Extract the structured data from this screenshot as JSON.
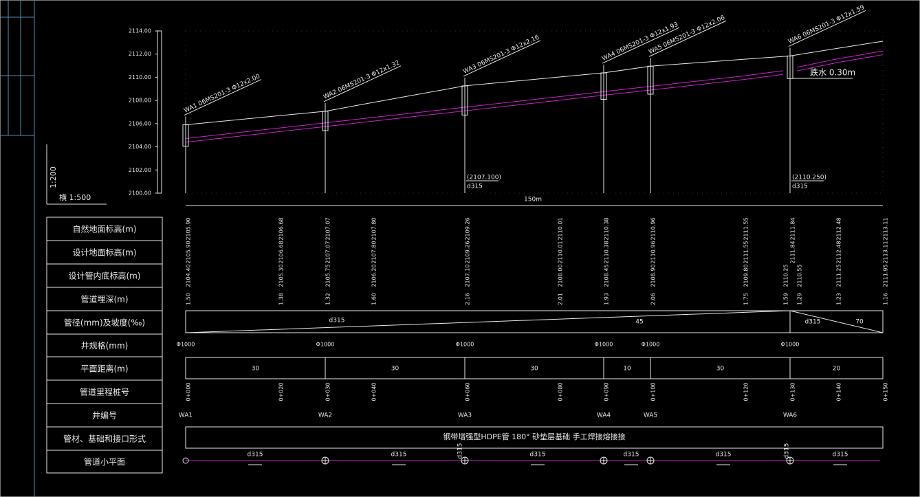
{
  "scale": {
    "vertical": "1:200",
    "horizontal": "横 1:500"
  },
  "axis": {
    "ticks": [
      "2114.00",
      "2112.00",
      "2110.00",
      "2108.00",
      "2106.00",
      "2104.00",
      "2102.00",
      "2100.00"
    ]
  },
  "wells": [
    {
      "id": "WA1",
      "label": "WA1 06MS201-3 Φ12x2.00",
      "spec": "Φ1000"
    },
    {
      "id": "WA2",
      "label": "WA2 06MS201-3 Φ12x1.32",
      "spec": "Φ1000"
    },
    {
      "id": "WA3",
      "label": "WA3 06MS201-3 Φ12x2.16",
      "spec": "Φ1000"
    },
    {
      "id": "WA4",
      "label": "WA4 06MS201-3 Φ12x1.93",
      "spec": "Φ1000"
    },
    {
      "id": "WA5",
      "label": "WA5 06MS201-3 Φ12x2.06",
      "spec": "Φ1000"
    },
    {
      "id": "WA6",
      "label": "WA6 06MS201-3 Φ12x1.59",
      "spec": "Φ1000"
    }
  ],
  "annotations": {
    "invert_wa3": "(2107.100)",
    "pipe_wa3": "d315",
    "invert_wa6": "(2110.250)",
    "pipe_wa6": "d315",
    "length": "150m",
    "drop": "跌水 0.30m"
  },
  "table": {
    "row_labels": [
      "自然地面标高(m)",
      "设计地面标高(m)",
      "设计管内底标高(m)",
      "管道埋深(m)",
      "管径(mm)及坡度(‰)",
      "井规格(mm)",
      "平面距离(m)",
      "管道里程桩号",
      "井编号",
      "管材、基础和接口形式",
      "管道小平面"
    ],
    "natural_ground": [
      "2105.90",
      "2106.68",
      "2107.07",
      "2107.80",
      "2109.26",
      "2110.01",
      "2110.38",
      "2110.96",
      "2111.55",
      "2111.84",
      "2112.48",
      "2113.11"
    ],
    "design_ground": [
      "2105.90",
      "2106.68",
      "2107.07",
      "2107.80",
      "2109.26",
      "2110.01",
      "2110.38",
      "2110.96",
      "2111.55",
      "2111.84",
      "2112.48",
      "2113.11"
    ],
    "invert": [
      "2104.40",
      "2105.30",
      "2105.75",
      "2106.20",
      "2107.10",
      "2108.00",
      "2108.45",
      "2108.90",
      "2109.80",
      "2110.25",
      "2110.55",
      "2111.25",
      "2111.95"
    ],
    "depth": [
      "1.50",
      "1.38",
      "1.32",
      "1.60",
      "2.16",
      "2.01",
      "1.93",
      "2.06",
      "1.75",
      "1.59",
      "1.29",
      "1.23",
      "1.16"
    ],
    "pipe_slope": [
      "d315",
      "45",
      "d315",
      "70"
    ],
    "distances": [
      "30",
      "30",
      "30",
      "10",
      "30",
      "20"
    ],
    "stations": [
      "0+000",
      "0+020",
      "0+030",
      "0+040",
      "0+060",
      "0+080",
      "0+090",
      "0+100",
      "0+120",
      "0+130",
      "0+140",
      "0+150"
    ],
    "material": "钢带增强型HDPE管    180° 砂垫层基础    手工焊接熔接接"
  },
  "plan": {
    "labels": [
      "d315",
      "d315",
      "d315",
      "d315",
      "d315",
      "d315"
    ],
    "vertical_labels": [
      "d315",
      "d315"
    ]
  }
}
